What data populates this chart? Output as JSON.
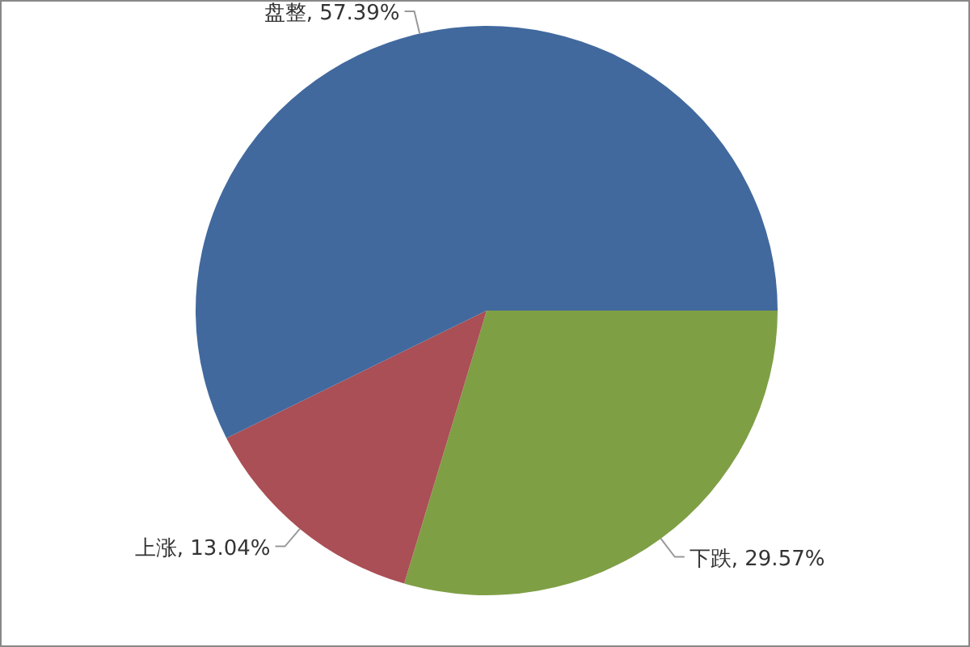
{
  "chart_data": {
    "type": "pie",
    "categories": [
      "下跌",
      "上涨",
      "盘整"
    ],
    "values": [
      29.57,
      13.04,
      57.39
    ],
    "colors": [
      "#7f9f45",
      "#a94f55",
      "#41699e"
    ],
    "value_labels": [
      ", 29.57%",
      ", 13.04%",
      ", 57.39%"
    ]
  }
}
